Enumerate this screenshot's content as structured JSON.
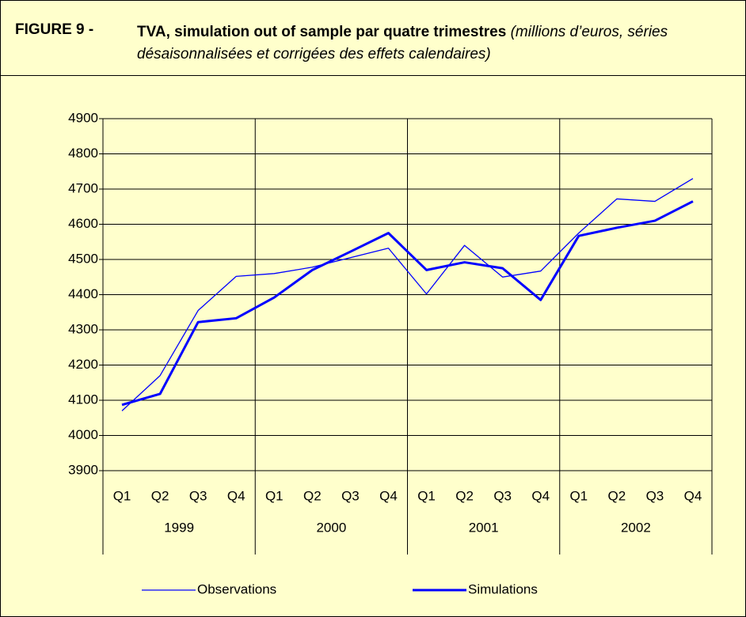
{
  "chart_data": {
    "type": "line",
    "title_label": "FIGURE 9 -",
    "title": "TVA, simulation out of sample par quatre trimestres",
    "subtitle": "(millions d’euros, séries désaisonnalisées et corrigées des effets calendaires)",
    "categories": [
      "Q1",
      "Q2",
      "Q3",
      "Q4",
      "Q1",
      "Q2",
      "Q3",
      "Q4",
      "Q1",
      "Q2",
      "Q3",
      "Q4",
      "Q1",
      "Q2",
      "Q3",
      "Q4"
    ],
    "groups": [
      "1999",
      "2000",
      "2001",
      "2002"
    ],
    "series": [
      {
        "name": "Observations",
        "color": "#0000ff",
        "values": [
          4070,
          4170,
          4355,
          4452,
          4460,
          4478,
          4505,
          4532,
          4402,
          4540,
          4450,
          4467,
          4575,
          4672,
          4665,
          4730
        ]
      },
      {
        "name": "Simulations",
        "color": "#0000ff",
        "values": [
          4087,
          4118,
          4322,
          4333,
          4392,
          4470,
          4522,
          4575,
          4470,
          4492,
          4475,
          4385,
          4567,
          4590,
          4610,
          4665
        ]
      }
    ],
    "ylim": [
      3900,
      4900
    ],
    "yticks": [
      3900,
      4000,
      4100,
      4200,
      4300,
      4400,
      4500,
      4600,
      4700,
      4800,
      4900
    ],
    "grid": true
  }
}
